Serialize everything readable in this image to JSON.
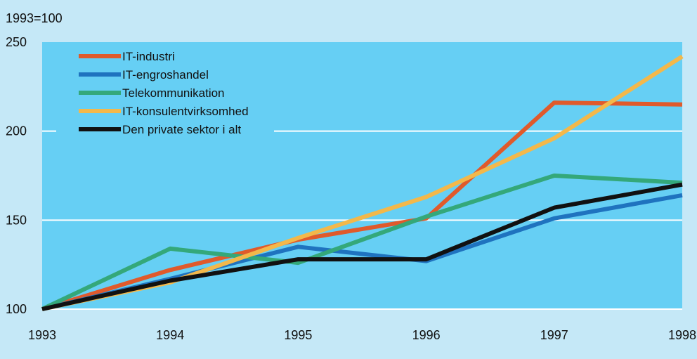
{
  "chart_data": {
    "type": "line",
    "title": "1993=100",
    "x": [
      "1993",
      "1994",
      "1995",
      "1996",
      "1997",
      "1998"
    ],
    "ylim": [
      100,
      250
    ],
    "yticks": [
      100,
      150,
      200,
      250
    ],
    "grid": true,
    "legend_position": "top-left",
    "series": [
      {
        "name": "IT-industri",
        "color": "#e05a2b",
        "values": [
          100,
          122,
          139,
          151,
          216,
          215
        ]
      },
      {
        "name": "IT-engroshandel",
        "color": "#1f73bf",
        "values": [
          100,
          117,
          135,
          127,
          151,
          164
        ]
      },
      {
        "name": "Telekommunikation",
        "color": "#34a87a",
        "values": [
          100,
          134,
          126,
          152,
          175,
          171
        ]
      },
      {
        "name": "IT-konsulentvirksomhed",
        "color": "#f3b84a",
        "values": [
          100,
          115,
          140,
          163,
          196,
          242
        ]
      },
      {
        "name": "Den private sektor i alt",
        "color": "#111111",
        "values": [
          100,
          116,
          128,
          128,
          157,
          170
        ]
      }
    ]
  }
}
